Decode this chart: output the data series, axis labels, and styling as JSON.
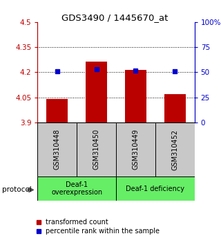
{
  "title": "GDS3490 / 1445670_at",
  "samples": [
    "GSM310448",
    "GSM310450",
    "GSM310449",
    "GSM310452"
  ],
  "red_values": [
    4.04,
    4.265,
    4.215,
    4.07
  ],
  "blue_percentiles": [
    51,
    53,
    52,
    51
  ],
  "y_min": 3.9,
  "y_max": 4.5,
  "y_ticks_left": [
    3.9,
    4.05,
    4.2,
    4.35,
    4.5
  ],
  "y_ticks_right": [
    0,
    25,
    50,
    75,
    100
  ],
  "y_ticks_right_labels": [
    "0",
    "25",
    "50",
    "75",
    "100%"
  ],
  "dotted_lines": [
    4.05,
    4.2,
    4.35
  ],
  "bar_width": 0.55,
  "red_color": "#bb0000",
  "blue_color": "#0000cc",
  "group1_label": "Deaf-1\noverexpression",
  "group2_label": "Deaf-1 deficiency",
  "group_color": "#66ee66",
  "group1_samples": [
    0,
    1
  ],
  "group2_samples": [
    2,
    3
  ],
  "legend_red": "transformed count",
  "legend_blue": "percentile rank within the sample",
  "protocol_label": "protocol",
  "sample_bg_color": "#c8c8c8"
}
